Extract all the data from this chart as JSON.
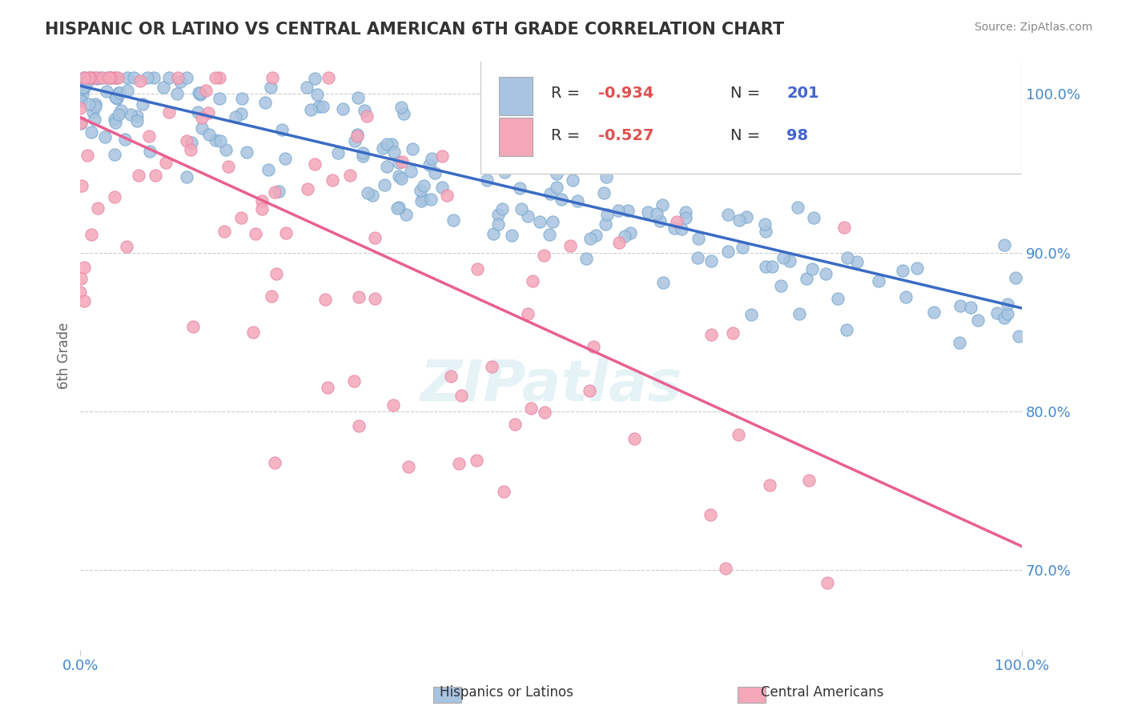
{
  "title": "HISPANIC OR LATINO VS CENTRAL AMERICAN 6TH GRADE CORRELATION CHART",
  "source": "Source: ZipAtlas.com",
  "ylabel": "6th Grade",
  "xlim": [
    0.0,
    1.0
  ],
  "ylim": [
    0.65,
    1.02
  ],
  "yticks": [
    0.7,
    0.8,
    0.9,
    1.0
  ],
  "ytick_labels": [
    "70.0%",
    "80.0%",
    "90.0%",
    "100.0%"
  ],
  "xtick_labels": [
    "0.0%",
    "100.0%"
  ],
  "blue_R": -0.934,
  "blue_N": 201,
  "pink_R": -0.527,
  "pink_N": 98,
  "blue_color": "#a8c4e0",
  "pink_color": "#f4a7b9",
  "blue_line_color": "#3a6bc4",
  "pink_line_color": "#e86090",
  "blue_scatter_edge": "#7aaad0",
  "pink_scatter_edge": "#e888a8",
  "legend_blue_label": "Hispanics or Latinos",
  "legend_pink_label": "Central Americans",
  "watermark": "ZIPatlas",
  "background_color": "#ffffff",
  "grid_color": "#cccccc",
  "title_color": "#333333",
  "axis_label_color": "#666666",
  "tick_label_color": "#4488cc",
  "legend_R_color": "#e05050",
  "legend_N_color": "#4466cc",
  "blue_slope": -0.14,
  "blue_intercept": 1.005,
  "pink_slope": -0.27,
  "pink_intercept": 0.985
}
